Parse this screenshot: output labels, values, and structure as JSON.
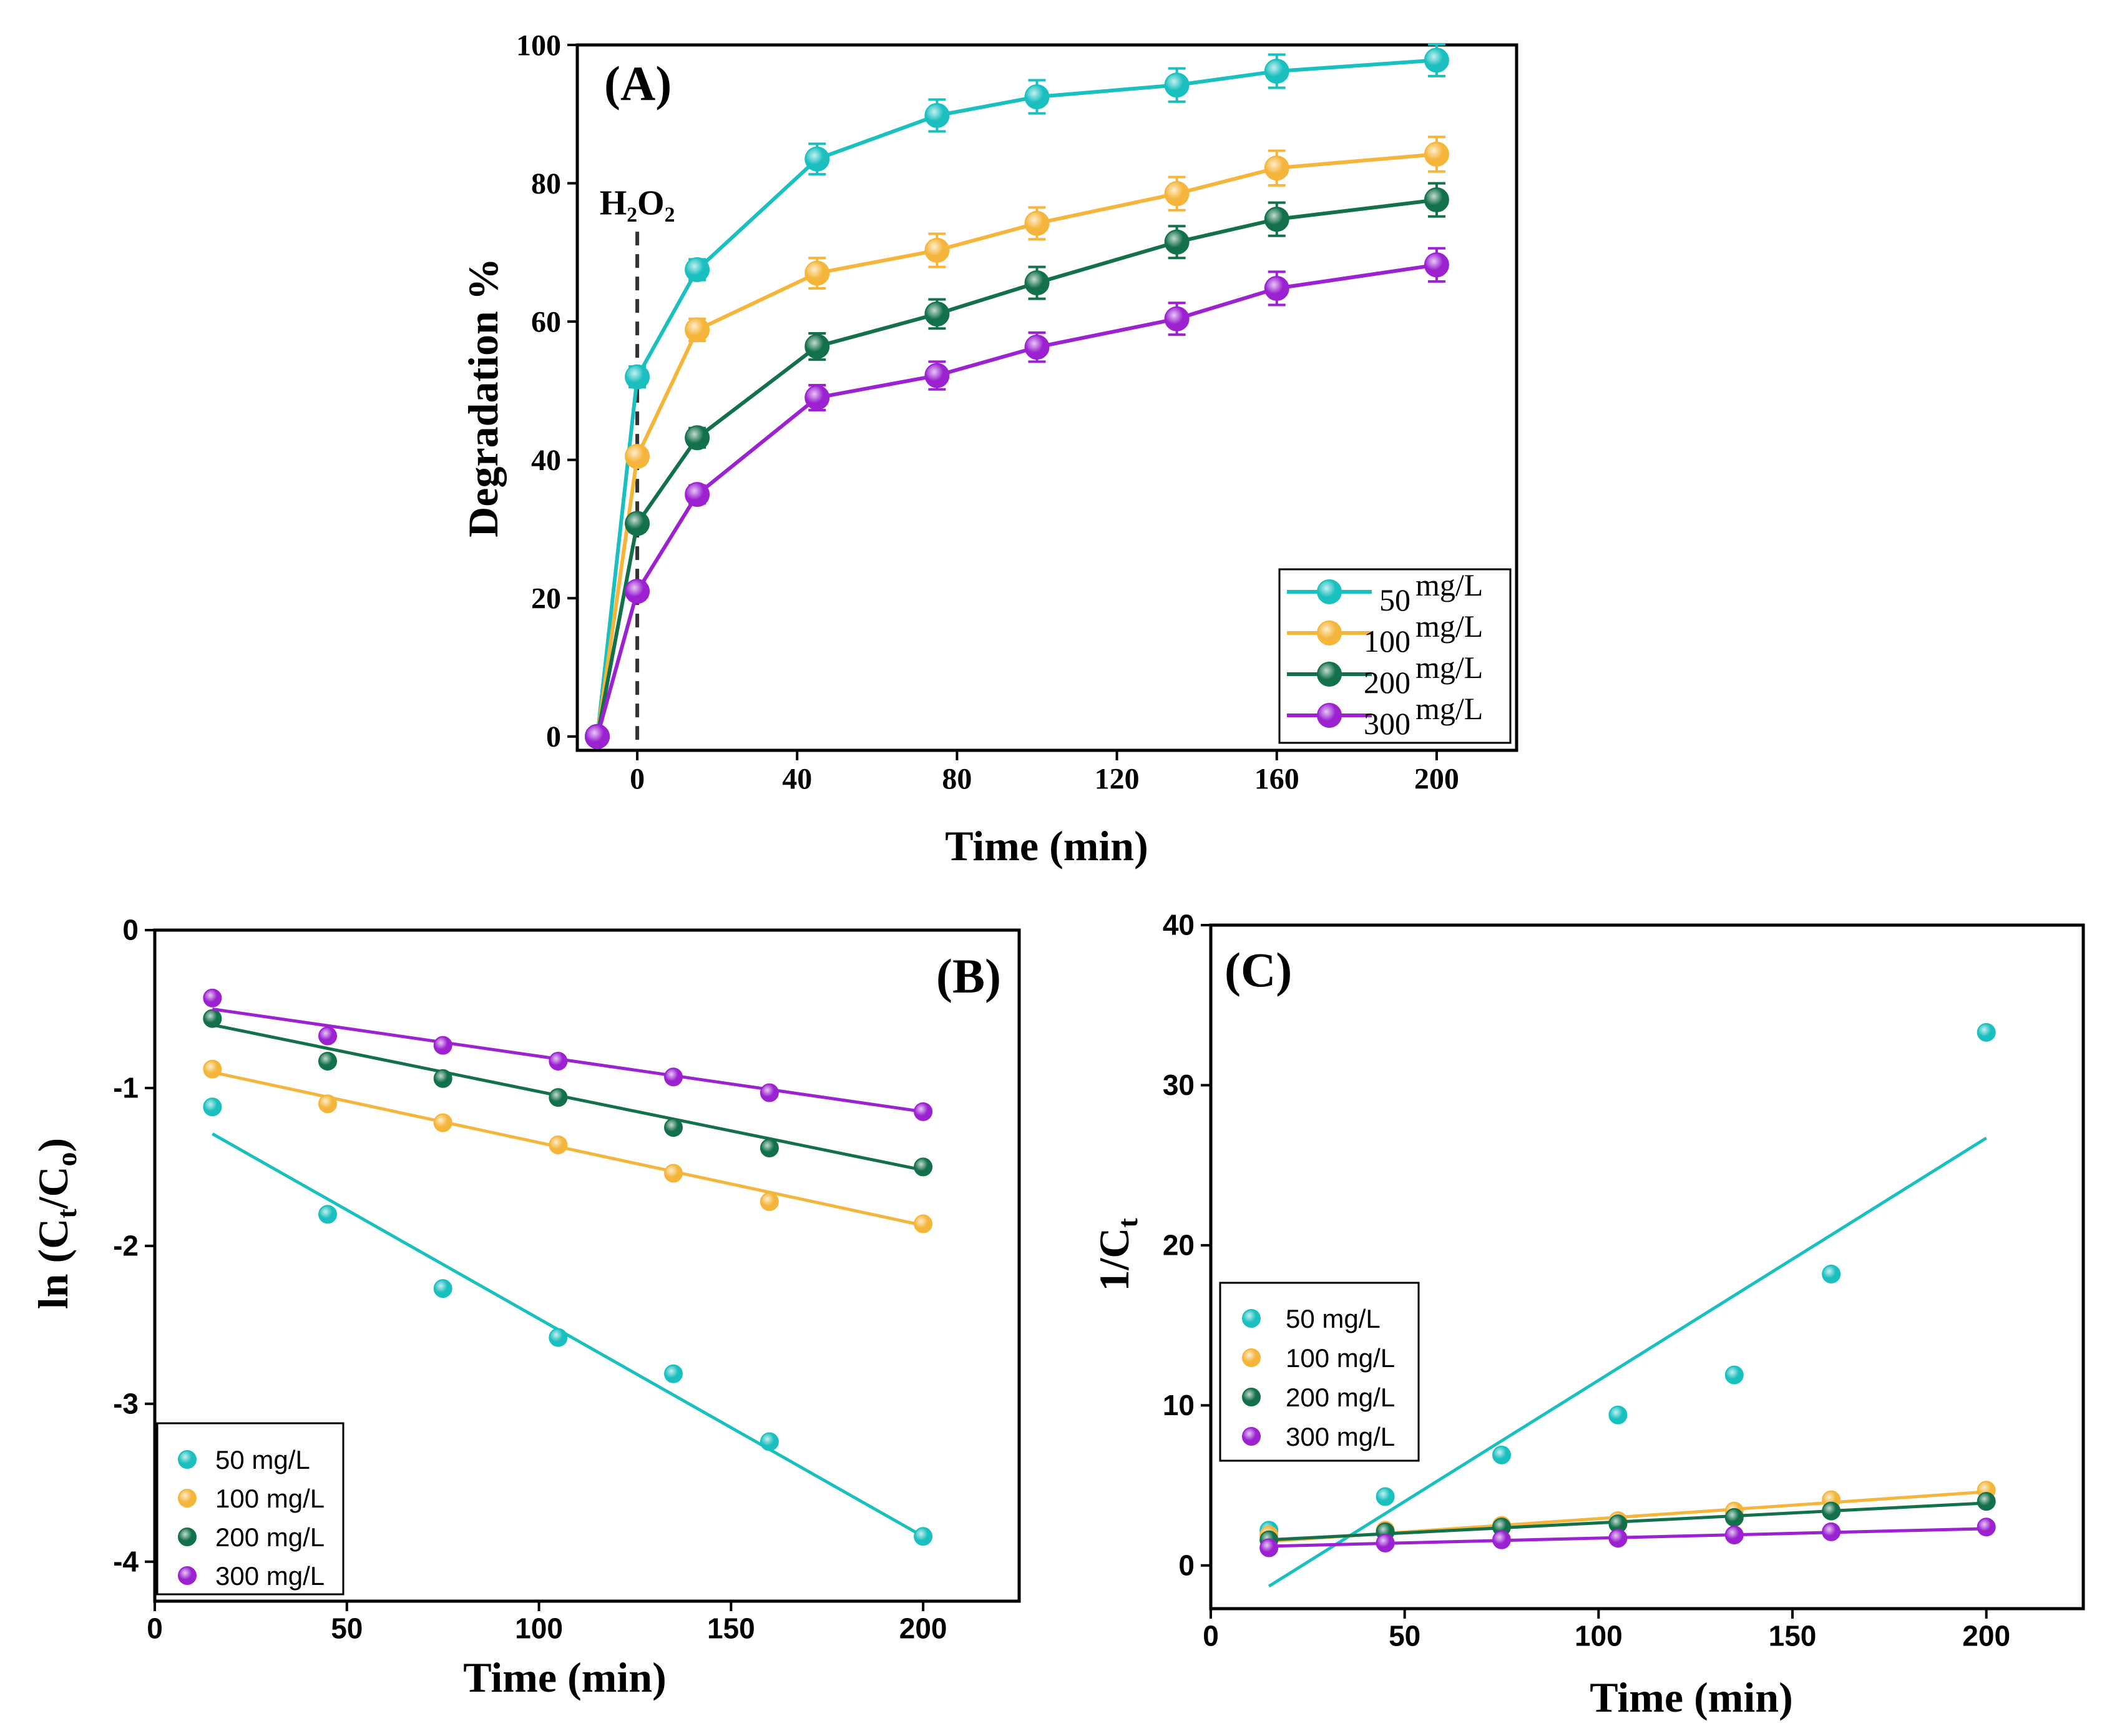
{
  "colors": {
    "s50": "#1ABFBF",
    "s100": "#F5B53B",
    "s200": "#12704A",
    "s300": "#9B21D1",
    "axis": "#000000",
    "marker_line": "#444444"
  },
  "chart_data": [
    {
      "id": "A",
      "type": "line",
      "panel_label": "(A)",
      "xlabel": "Time (min)",
      "ylabel": "Degradation %",
      "xlim": [
        -15,
        220
      ],
      "ylim": [
        -2,
        100
      ],
      "xticks": [
        0,
        40,
        80,
        120,
        160,
        200
      ],
      "yticks": [
        0,
        20,
        40,
        60,
        80,
        100
      ],
      "annotation": {
        "text": "H₂O₂",
        "x": 0
      },
      "legend_position": "bottom-right",
      "series": [
        {
          "name": "50 mg/L",
          "num": "50",
          "unit": "mg/L",
          "color": "#1ABFBF",
          "x": [
            -10,
            0,
            15,
            45,
            75,
            100,
            135,
            160,
            200
          ],
          "y": [
            0,
            52,
            67.5,
            83.5,
            89.8,
            92.5,
            94.2,
            96.2,
            97.8
          ],
          "err": [
            0,
            1.5,
            1.5,
            2.2,
            2.3,
            2.4,
            2.4,
            2.4,
            2.3
          ]
        },
        {
          "name": "100 mg/L",
          "num": "100",
          "unit": "mg/L",
          "color": "#F5B53B",
          "x": [
            -10,
            0,
            15,
            45,
            75,
            100,
            135,
            160,
            200
          ],
          "y": [
            0,
            40.5,
            58.8,
            67,
            70.3,
            74.2,
            78.5,
            82.2,
            84.2
          ],
          "err": [
            0,
            1.2,
            1.6,
            2.2,
            2.4,
            2.3,
            2.4,
            2.5,
            2.5
          ]
        },
        {
          "name": "200 mg/L",
          "num": "200",
          "unit": "mg/L",
          "color": "#12704A",
          "x": [
            -10,
            0,
            15,
            45,
            75,
            100,
            135,
            160,
            200
          ],
          "y": [
            0,
            30.8,
            43.2,
            56.4,
            61.1,
            65.6,
            71.5,
            74.8,
            77.6
          ],
          "err": [
            0,
            1.2,
            1.4,
            1.9,
            2.1,
            2.3,
            2.3,
            2.4,
            2.4
          ]
        },
        {
          "name": "300 mg/L",
          "num": "300",
          "unit": "mg/L",
          "color": "#9B21D1",
          "x": [
            -10,
            0,
            15,
            45,
            75,
            100,
            135,
            160,
            200
          ],
          "y": [
            0,
            21,
            35,
            49,
            52.2,
            56.3,
            60.4,
            64.8,
            68.2
          ],
          "err": [
            0,
            1.2,
            1.3,
            1.8,
            2.0,
            2.1,
            2.3,
            2.4,
            2.4
          ]
        }
      ]
    },
    {
      "id": "B",
      "type": "scatter",
      "panel_label": "(B)",
      "xlabel": "Time (min)",
      "ylabel": "ln (Ct/Co)",
      "ylabel_parts": {
        "pre": "ln (C",
        "sub1": "t",
        "mid": "/C",
        "sub2": "o",
        "post": ")"
      },
      "xlim": [
        0,
        225
      ],
      "ylim": [
        -4.25,
        0
      ],
      "xticks": [
        0,
        50,
        100,
        150,
        200
      ],
      "yticks": [
        0,
        -1,
        -2,
        -3,
        -4
      ],
      "legend_position": "bottom-left",
      "series": [
        {
          "name": "50 mg/L",
          "color": "#1ABFBF",
          "x": [
            15,
            45,
            75,
            105,
            135,
            160,
            200
          ],
          "y": [
            -1.12,
            -1.8,
            -2.27,
            -2.58,
            -2.81,
            -3.24,
            -3.84
          ],
          "fit": [
            [
              15,
              -1.29
            ],
            [
              200,
              -3.84
            ]
          ]
        },
        {
          "name": "100 mg/L",
          "color": "#F5B53B",
          "x": [
            15,
            45,
            75,
            105,
            135,
            160,
            200
          ],
          "y": [
            -0.88,
            -1.1,
            -1.22,
            -1.36,
            -1.54,
            -1.72,
            -1.86
          ],
          "fit": [
            [
              15,
              -0.9
            ],
            [
              200,
              -1.87
            ]
          ]
        },
        {
          "name": "200 mg/L",
          "color": "#12704A",
          "x": [
            15,
            45,
            75,
            105,
            135,
            160,
            200
          ],
          "y": [
            -0.56,
            -0.83,
            -0.94,
            -1.06,
            -1.25,
            -1.38,
            -1.5
          ],
          "fit": [
            [
              15,
              -0.6
            ],
            [
              200,
              -1.52
            ]
          ]
        },
        {
          "name": "300 mg/L",
          "color": "#9B21D1",
          "x": [
            15,
            45,
            75,
            105,
            135,
            160,
            200
          ],
          "y": [
            -0.43,
            -0.67,
            -0.73,
            -0.83,
            -0.93,
            -1.03,
            -1.15
          ],
          "fit": [
            [
              15,
              -0.5
            ],
            [
              200,
              -1.15
            ]
          ]
        }
      ]
    },
    {
      "id": "C",
      "type": "scatter",
      "panel_label": "(C)",
      "xlabel": "Time (min)",
      "ylabel": "1/Ct",
      "ylabel_parts": {
        "pre": "1/C",
        "sub1": "t"
      },
      "xlim": [
        0,
        225
      ],
      "ylim": [
        -2.7,
        40
      ],
      "xticks": [
        0,
        50,
        100,
        150,
        200
      ],
      "yticks": [
        0,
        10,
        20,
        30,
        40
      ],
      "legend_position": "middle-left",
      "series": [
        {
          "name": "50 mg/L",
          "color": "#1ABFBF",
          "x": [
            15,
            45,
            75,
            105,
            135,
            160,
            200
          ],
          "y": [
            2.2,
            4.3,
            6.9,
            9.4,
            11.9,
            18.2,
            33.3
          ],
          "fit": [
            [
              15,
              -1.3
            ],
            [
              200,
              26.7
            ]
          ]
        },
        {
          "name": "100 mg/L",
          "color": "#F5B53B",
          "x": [
            15,
            45,
            75,
            105,
            135,
            160,
            200
          ],
          "y": [
            1.9,
            2.2,
            2.5,
            2.8,
            3.4,
            4.1,
            4.7
          ],
          "fit": [
            [
              15,
              1.5
            ],
            [
              200,
              4.6
            ]
          ]
        },
        {
          "name": "200 mg/L",
          "color": "#12704A",
          "x": [
            15,
            45,
            75,
            105,
            135,
            160,
            200
          ],
          "y": [
            1.6,
            2.1,
            2.4,
            2.6,
            3.0,
            3.4,
            4.0
          ],
          "fit": [
            [
              15,
              1.6
            ],
            [
              200,
              3.9
            ]
          ]
        },
        {
          "name": "300 mg/L",
          "color": "#9B21D1",
          "x": [
            15,
            45,
            75,
            105,
            135,
            160,
            200
          ],
          "y": [
            1.1,
            1.4,
            1.6,
            1.7,
            1.9,
            2.1,
            2.4
          ],
          "fit": [
            [
              15,
              1.2
            ],
            [
              200,
              2.3
            ]
          ]
        }
      ]
    }
  ]
}
